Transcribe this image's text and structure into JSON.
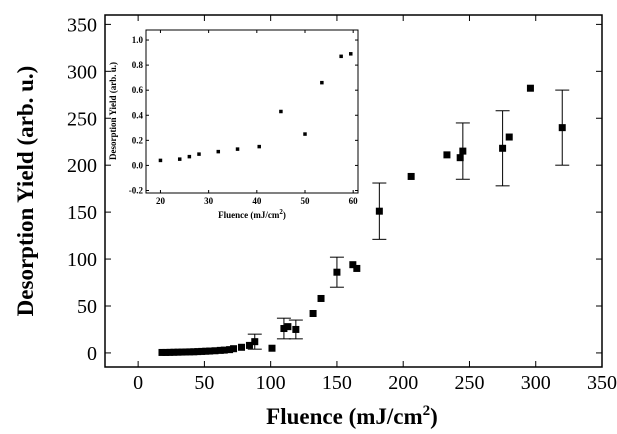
{
  "chart_data": [
    {
      "type": "scatter",
      "title": "",
      "xlabel": "Fluence (mJ/cm",
      "xlabel_sup": "2",
      "xlabel_end": ")",
      "ylabel": "Desorption Yield (arb. u.)",
      "xlim": [
        -25,
        350
      ],
      "ylim": [
        -15,
        360
      ],
      "xticks": [
        "0",
        "50",
        "100",
        "150",
        "200",
        "250",
        "300",
        "350"
      ],
      "yticks": [
        "0",
        "50",
        "100",
        "150",
        "200",
        "250",
        "300",
        "350"
      ],
      "xtick_values": [
        0,
        50,
        100,
        150,
        200,
        250,
        300,
        350
      ],
      "ytick_values": [
        0,
        50,
        100,
        150,
        200,
        250,
        300,
        350
      ],
      "grid": false,
      "marker": "square",
      "points": [
        {
          "x": 18,
          "y": 0.5
        },
        {
          "x": 21,
          "y": 0.5
        },
        {
          "x": 24,
          "y": 0.6
        },
        {
          "x": 27,
          "y": 0.7
        },
        {
          "x": 30,
          "y": 0.8
        },
        {
          "x": 33,
          "y": 0.9
        },
        {
          "x": 36,
          "y": 1.0
        },
        {
          "x": 39,
          "y": 1.1
        },
        {
          "x": 42,
          "y": 1.2
        },
        {
          "x": 45,
          "y": 1.4
        },
        {
          "x": 48,
          "y": 1.6
        },
        {
          "x": 51,
          "y": 1.8
        },
        {
          "x": 54,
          "y": 2.0
        },
        {
          "x": 58,
          "y": 2.3
        },
        {
          "x": 62,
          "y": 2.7
        },
        {
          "x": 65,
          "y": 3.0
        },
        {
          "x": 69,
          "y": 3.5
        },
        {
          "x": 72,
          "y": 4.5
        },
        {
          "x": 78,
          "y": 6
        },
        {
          "x": 84,
          "y": 8
        },
        {
          "x": 88,
          "y": 12,
          "err": 8
        },
        {
          "x": 101,
          "y": 5
        },
        {
          "x": 110,
          "y": 26,
          "err": 11
        },
        {
          "x": 113,
          "y": 28
        },
        {
          "x": 119,
          "y": 25,
          "err": 10
        },
        {
          "x": 132,
          "y": 42
        },
        {
          "x": 138,
          "y": 58
        },
        {
          "x": 150,
          "y": 86,
          "err": 16
        },
        {
          "x": 162,
          "y": 94
        },
        {
          "x": 165,
          "y": 90
        },
        {
          "x": 182,
          "y": 151,
          "err": 30
        },
        {
          "x": 206,
          "y": 188
        },
        {
          "x": 233,
          "y": 211
        },
        {
          "x": 243,
          "y": 208
        },
        {
          "x": 245,
          "y": 215,
          "err": 30
        },
        {
          "x": 275,
          "y": 218,
          "err": 40
        },
        {
          "x": 280,
          "y": 230
        },
        {
          "x": 296,
          "y": 282
        },
        {
          "x": 320,
          "y": 240,
          "err": 40
        }
      ]
    },
    {
      "type": "scatter",
      "title": "",
      "xlabel": "Fluence (mJ/cm",
      "xlabel_sup": "2",
      "xlabel_end": ")",
      "ylabel": "Desorption Yield (arb. u.)",
      "xlim": [
        17,
        61
      ],
      "ylim": [
        -0.22,
        1.08
      ],
      "xticks": [
        "20",
        "30",
        "40",
        "50",
        "60"
      ],
      "yticks": [
        "-0.2",
        "0.0",
        "0.2",
        "0.4",
        "0.6",
        "0.8",
        "1.0"
      ],
      "xtick_values": [
        20,
        30,
        40,
        50,
        60
      ],
      "ytick_values": [
        -0.2,
        0,
        0.2,
        0.4,
        0.6,
        0.8,
        1.0
      ],
      "grid": false,
      "marker": "square",
      "points": [
        {
          "x": 20,
          "y": 0.04
        },
        {
          "x": 24,
          "y": 0.05
        },
        {
          "x": 26,
          "y": 0.07
        },
        {
          "x": 28,
          "y": 0.09
        },
        {
          "x": 32,
          "y": 0.11
        },
        {
          "x": 36,
          "y": 0.13
        },
        {
          "x": 40.5,
          "y": 0.15
        },
        {
          "x": 45,
          "y": 0.43
        },
        {
          "x": 50,
          "y": 0.25
        },
        {
          "x": 53.5,
          "y": 0.66
        },
        {
          "x": 57.5,
          "y": 0.87
        },
        {
          "x": 59.5,
          "y": 0.89
        }
      ]
    }
  ]
}
